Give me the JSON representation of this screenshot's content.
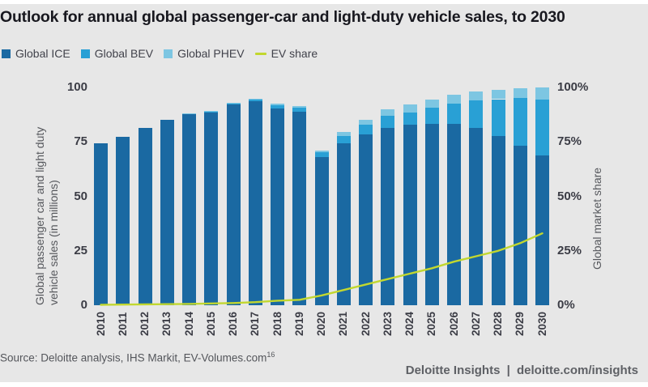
{
  "title": "Outlook for annual global passenger-car and light-duty vehicle sales, to 2030",
  "legend": [
    {
      "label": "Global ICE",
      "swatch": "square",
      "color": "#1a69a2"
    },
    {
      "label": "Global BEV",
      "swatch": "square",
      "color": "#29a0d5"
    },
    {
      "label": "Global PHEV",
      "swatch": "square",
      "color": "#7dc6e2"
    },
    {
      "label": "EV share",
      "swatch": "line",
      "color": "#c2d72f"
    }
  ],
  "chart_data": {
    "type": "stacked-bar-with-line",
    "title": "Outlook for annual global passenger-car and light-duty vehicle sales, to 2030",
    "categories": [
      "2010",
      "2011",
      "2012",
      "2013",
      "2014",
      "2015",
      "2016",
      "2017",
      "2018",
      "2019",
      "2020",
      "2021",
      "2022",
      "2023",
      "2024",
      "2025",
      "2026",
      "2027",
      "2028",
      "2029",
      "2030"
    ],
    "series": [
      {
        "id": "ice",
        "name": "Global ICE",
        "color": "#1a69a2",
        "values": [
          74.2,
          77.2,
          81.3,
          85.3,
          87.9,
          88.6,
          92.2,
          93.6,
          90.4,
          89.0,
          67.9,
          74.2,
          78.3,
          81.5,
          82.8,
          83.4,
          83.2,
          81.3,
          77.6,
          73.2,
          68.9
        ]
      },
      {
        "id": "bev",
        "name": "Global BEV",
        "color": "#29a0d5",
        "values": [
          0,
          0,
          0,
          0,
          0.2,
          0.3,
          0.5,
          0.8,
          1.4,
          1.7,
          2.3,
          3.6,
          4.5,
          5.5,
          5.7,
          7.3,
          9.4,
          12.8,
          17.0,
          22.0,
          25.4
        ]
      },
      {
        "id": "phev",
        "name": "Global PHEV",
        "color": "#7dc6e2",
        "values": [
          0,
          0,
          0,
          0,
          0.1,
          0.2,
          0.3,
          0.4,
          0.7,
          0.8,
          0.8,
          1.7,
          2.5,
          3.0,
          3.6,
          3.7,
          4.2,
          4.0,
          4.2,
          4.4,
          5.8
        ]
      }
    ],
    "line_series": {
      "id": "ev-share",
      "name": "EV share",
      "color": "#c2d72f",
      "axis": "right",
      "values": [
        0.2,
        0.3,
        0.4,
        0.5,
        0.6,
        0.8,
        1.0,
        1.4,
        2.1,
        2.5,
        4.5,
        7.0,
        9.5,
        12.0,
        14.5,
        17.0,
        20.0,
        22.5,
        25.0,
        28.5,
        33.0
      ]
    },
    "left_axis": {
      "title_line1": "Global passenger car and light duty",
      "title_line2": "vehicle sales (in millions)",
      "ticks": [
        {
          "label": "0",
          "value": 0
        },
        {
          "label": "25",
          "value": 25
        },
        {
          "label": "50",
          "value": 50
        },
        {
          "label": "75",
          "value": 75
        },
        {
          "label": "100",
          "value": 100
        }
      ],
      "range": [
        0,
        100
      ]
    },
    "right_axis": {
      "title": "Global market share",
      "ticks": [
        {
          "label": "0%",
          "value": 0
        },
        {
          "label": "25%",
          "value": 25
        },
        {
          "label": "50%",
          "value": 50
        },
        {
          "label": "75%",
          "value": 75
        },
        {
          "label": "100%",
          "value": 100
        }
      ],
      "range": [
        0,
        100
      ]
    },
    "legend_position": "top-left",
    "grid": false
  },
  "source_note": {
    "text": "Source: Deloitte analysis, IHS Markit, EV-Volumes.com",
    "superscript": "16"
  },
  "footer": {
    "brand": "Deloitte Insights",
    "separator": "|",
    "url": "deloitte.com/insights"
  }
}
